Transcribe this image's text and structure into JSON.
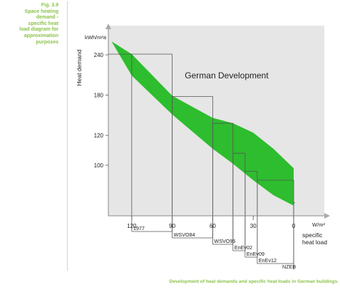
{
  "caption": {
    "lines": [
      "Fig. 3.9",
      "Space heating",
      "demand -",
      "specific heat",
      "load diagram for",
      "approximation",
      "purposes"
    ]
  },
  "footer": "Development of heat demands and specific heat loads in German buildings.",
  "colors": {
    "band": "#2ebd2e",
    "panel": "#e6e6e6",
    "accent": "#8bc34a"
  },
  "chart_data": {
    "type": "area",
    "title": "German Development",
    "ylabel": "Heat demand",
    "y_unit": "kWh/m²a",
    "x_unit": "W/m²",
    "xlabel": "specific heat load",
    "y_ticks": [
      240,
      180,
      120,
      100
    ],
    "x_ticks": [
      120,
      90,
      60,
      30,
      0
    ],
    "band_upper": [
      [
        135,
        260
      ],
      [
        120,
        241
      ],
      [
        90,
        179
      ],
      [
        60,
        146
      ],
      [
        45,
        138
      ],
      [
        30,
        124
      ],
      [
        15,
        111
      ],
      [
        0,
        98
      ]
    ],
    "band_lower": [
      [
        135,
        260
      ],
      [
        120,
        209
      ],
      [
        90,
        151
      ],
      [
        60,
        111
      ],
      [
        45,
        101
      ],
      [
        30,
        90
      ],
      [
        15,
        80
      ],
      [
        0,
        73
      ]
    ],
    "standards": [
      {
        "name": "1977",
        "heat_load": 120,
        "heat_demand": 241
      },
      {
        "name": "WSVO84",
        "heat_load": 90,
        "heat_demand": 178
      },
      {
        "name": "WSVO95",
        "heat_load": 60,
        "heat_demand": 138
      },
      {
        "name": "EnEv02",
        "heat_load": 45,
        "heat_demand": 108
      },
      {
        "name": "EnEv09",
        "heat_load": 36,
        "heat_demand": 96
      },
      {
        "name": "EnEv12",
        "heat_load": 27,
        "heat_demand": 90
      },
      {
        "name": "NZEB",
        "heat_load": 0,
        "heat_demand": 75
      }
    ]
  }
}
